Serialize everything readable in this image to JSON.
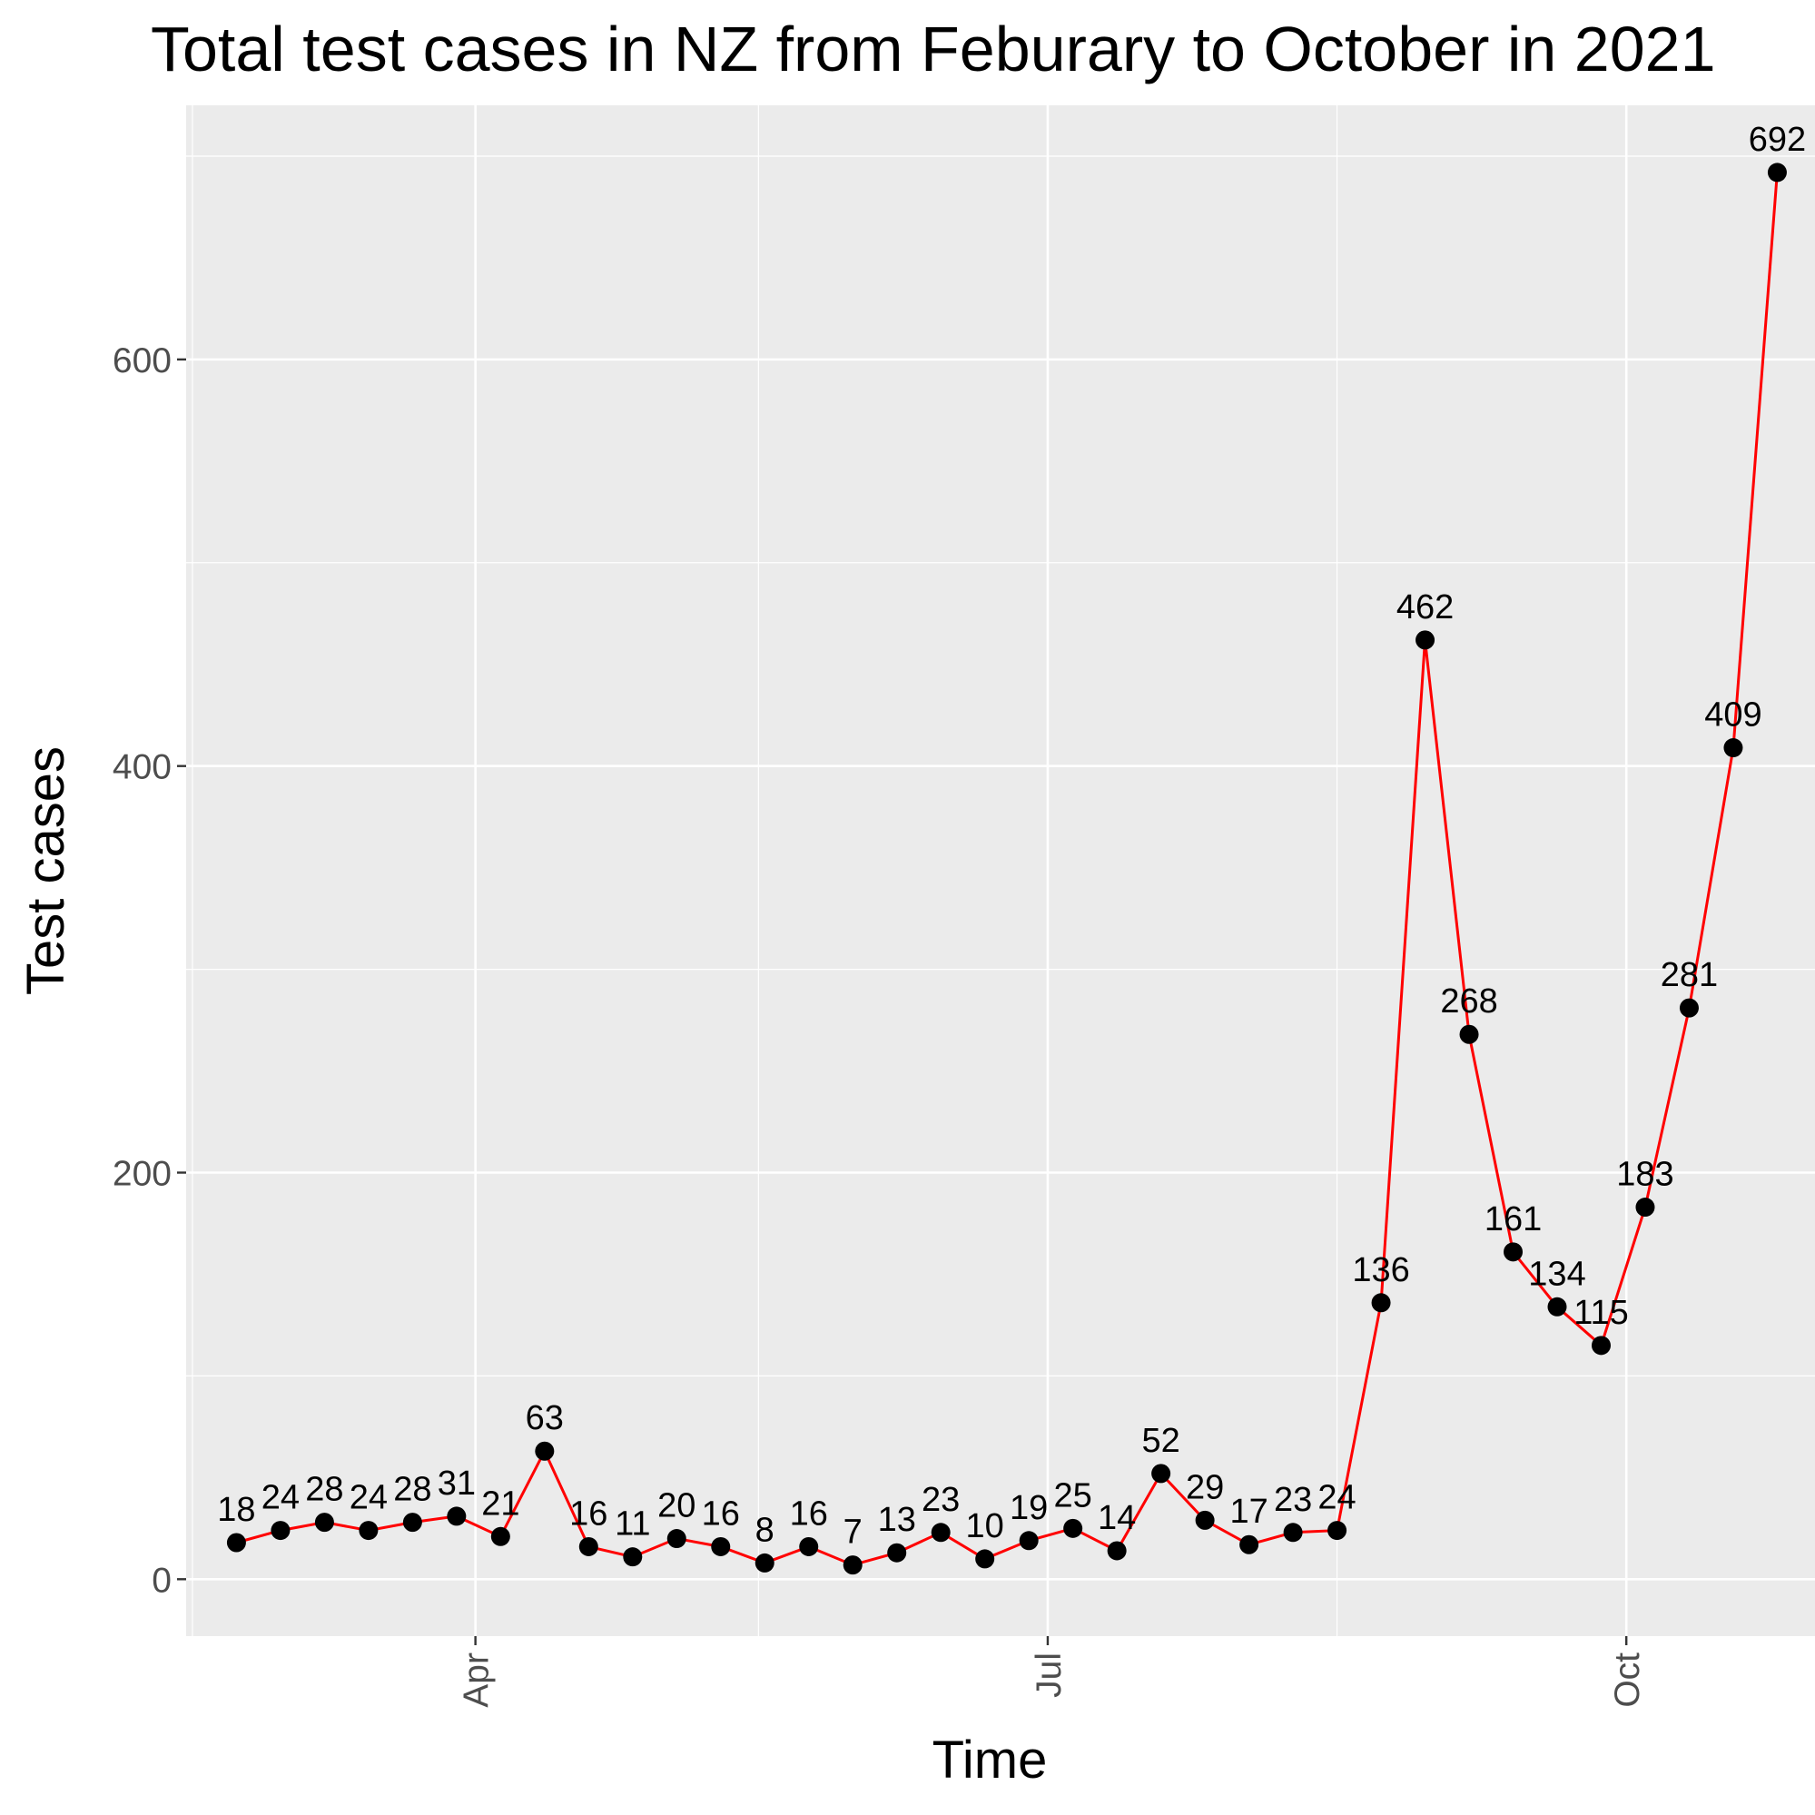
{
  "chart_data": {
    "type": "line",
    "title": "Total test cases in NZ from Feburary to October in 2021",
    "xlabel": "Time",
    "ylabel": "Test cases",
    "xlim": [
      "2021-02-14",
      "2021-10-31"
    ],
    "ylim": [
      -28,
      725
    ],
    "x_ticks": [
      {
        "label": "Apr",
        "date": "2021-04-01"
      },
      {
        "label": "Jul",
        "date": "2021-07-01"
      },
      {
        "label": "Oct",
        "date": "2021-10-01"
      }
    ],
    "x_minor_ticks": [
      "2021-02-15",
      "2021-05-16",
      "2021-08-16"
    ],
    "y_ticks": [
      {
        "label": "0",
        "value": 0
      },
      {
        "label": "200",
        "value": 200
      },
      {
        "label": "400",
        "value": 400
      },
      {
        "label": "600",
        "value": 600
      }
    ],
    "y_minor_ticks": [
      100,
      300,
      500,
      700
    ],
    "grid": true,
    "line_color": "#ff0000",
    "point_color": "#000000",
    "panel_color": "#ebebeb",
    "grid_color": "#ffffff",
    "series": [
      {
        "points": [
          {
            "x": "2021-02-22",
            "y": 18
          },
          {
            "x": "2021-03-01",
            "y": 24
          },
          {
            "x": "2021-03-08",
            "y": 28
          },
          {
            "x": "2021-03-15",
            "y": 24
          },
          {
            "x": "2021-03-22",
            "y": 28
          },
          {
            "x": "2021-03-29",
            "y": 31
          },
          {
            "x": "2021-04-05",
            "y": 21
          },
          {
            "x": "2021-04-12",
            "y": 63
          },
          {
            "x": "2021-04-19",
            "y": 16
          },
          {
            "x": "2021-04-26",
            "y": 11
          },
          {
            "x": "2021-05-03",
            "y": 20
          },
          {
            "x": "2021-05-10",
            "y": 16
          },
          {
            "x": "2021-05-17",
            "y": 8
          },
          {
            "x": "2021-05-24",
            "y": 16
          },
          {
            "x": "2021-05-31",
            "y": 7
          },
          {
            "x": "2021-06-07",
            "y": 13
          },
          {
            "x": "2021-06-14",
            "y": 23
          },
          {
            "x": "2021-06-21",
            "y": 10
          },
          {
            "x": "2021-06-28",
            "y": 19
          },
          {
            "x": "2021-07-05",
            "y": 25
          },
          {
            "x": "2021-07-12",
            "y": 14
          },
          {
            "x": "2021-07-19",
            "y": 52
          },
          {
            "x": "2021-07-26",
            "y": 29
          },
          {
            "x": "2021-08-02",
            "y": 17
          },
          {
            "x": "2021-08-09",
            "y": 23
          },
          {
            "x": "2021-08-16",
            "y": 24
          },
          {
            "x": "2021-08-23",
            "y": 136
          },
          {
            "x": "2021-08-30",
            "y": 462
          },
          {
            "x": "2021-09-06",
            "y": 268
          },
          {
            "x": "2021-09-13",
            "y": 161
          },
          {
            "x": "2021-09-20",
            "y": 134
          },
          {
            "x": "2021-09-27",
            "y": 115
          },
          {
            "x": "2021-10-04",
            "y": 183
          },
          {
            "x": "2021-10-11",
            "y": 281
          },
          {
            "x": "2021-10-18",
            "y": 409
          },
          {
            "x": "2021-10-25",
            "y": 692
          }
        ]
      }
    ]
  }
}
